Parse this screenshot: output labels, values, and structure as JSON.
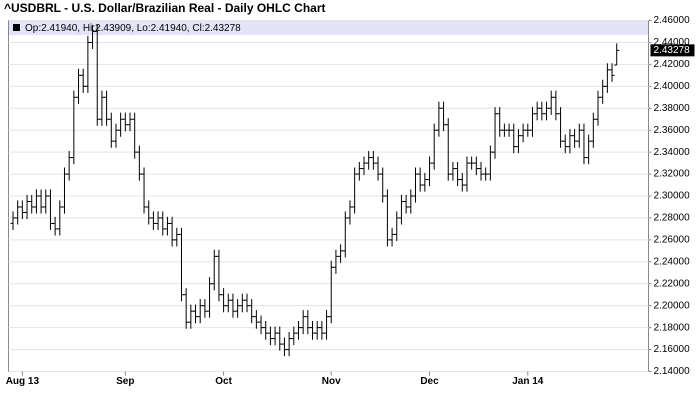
{
  "chart_data": {
    "type": "ohlc",
    "title": "^USDBRL - U.S. Dollar/Brazilian Real - Daily OHLC Chart",
    "info_label": "Op:2.41940, Hi:2.43909, Lo:2.41940, Cl:2.43278",
    "color": "#000000",
    "grid": true,
    "categories": [
      null,
      null,
      "Aug 13",
      null,
      null,
      null,
      null,
      null,
      null,
      null,
      null,
      null,
      null,
      null,
      null,
      null,
      null,
      null,
      null,
      null,
      null,
      null,
      null,
      null,
      "Sep",
      null,
      null,
      null,
      null,
      null,
      null,
      null,
      null,
      null,
      null,
      null,
      null,
      null,
      null,
      null,
      null,
      null,
      null,
      null,
      null,
      "Oct",
      null,
      null,
      null,
      null,
      null,
      null,
      null,
      null,
      null,
      null,
      null,
      null,
      null,
      null,
      null,
      null,
      null,
      null,
      null,
      null,
      null,
      null,
      "Nov",
      null,
      null,
      null,
      null,
      null,
      null,
      null,
      null,
      null,
      null,
      null,
      null,
      null,
      null,
      null,
      null,
      null,
      null,
      null,
      null,
      "Dec",
      null,
      null,
      null,
      null,
      null,
      null,
      null,
      null,
      null,
      null,
      null,
      null,
      null,
      null,
      null,
      null,
      null,
      null,
      null,
      null,
      "Jan 14",
      null,
      null,
      null,
      null,
      null,
      null,
      null,
      null,
      null,
      null,
      null,
      null,
      null,
      null,
      null,
      null,
      null,
      null,
      null
    ],
    "open": [
      2.275,
      2.28,
      2.29,
      2.285,
      2.295,
      2.29,
      2.3,
      2.29,
      2.3,
      2.275,
      2.27,
      2.29,
      2.32,
      2.335,
      2.39,
      2.41,
      2.4,
      2.44,
      2.45,
      2.37,
      2.39,
      2.37,
      2.35,
      2.36,
      2.37,
      2.365,
      2.37,
      2.34,
      2.32,
      2.29,
      2.28,
      2.275,
      2.28,
      2.27,
      2.275,
      2.26,
      2.265,
      2.21,
      2.185,
      2.195,
      2.19,
      2.2,
      2.195,
      2.22,
      2.245,
      2.21,
      2.2,
      2.205,
      2.195,
      2.2,
      2.205,
      2.2,
      2.19,
      2.185,
      2.18,
      2.175,
      2.17,
      2.175,
      2.165,
      2.16,
      2.17,
      2.175,
      2.18,
      2.19,
      2.18,
      2.175,
      2.18,
      2.175,
      2.19,
      2.235,
      2.245,
      2.25,
      2.28,
      2.29,
      2.32,
      2.325,
      2.33,
      2.335,
      2.33,
      2.32,
      2.3,
      2.26,
      2.265,
      2.28,
      2.295,
      2.29,
      2.3,
      2.32,
      2.31,
      2.315,
      2.33,
      2.36,
      2.38,
      2.365,
      2.32,
      2.325,
      2.315,
      2.31,
      2.33,
      2.33,
      2.325,
      2.32,
      2.32,
      2.34,
      2.375,
      2.36,
      2.36,
      2.36,
      2.345,
      2.355,
      2.36,
      2.36,
      2.375,
      2.38,
      2.375,
      2.38,
      2.39,
      2.375,
      2.35,
      2.345,
      2.355,
      2.35,
      2.36,
      2.335,
      2.35,
      2.37,
      2.39,
      2.4,
      2.415,
      2.4194
    ],
    "high": [
      2.286,
      2.296,
      2.296,
      2.301,
      2.301,
      2.306,
      2.306,
      2.306,
      2.306,
      2.281,
      2.296,
      2.326,
      2.341,
      2.396,
      2.416,
      2.416,
      2.446,
      2.456,
      2.456,
      2.396,
      2.396,
      2.376,
      2.366,
      2.376,
      2.376,
      2.376,
      2.376,
      2.346,
      2.326,
      2.296,
      2.286,
      2.286,
      2.286,
      2.281,
      2.281,
      2.271,
      2.271,
      2.216,
      2.201,
      2.201,
      2.206,
      2.206,
      2.226,
      2.251,
      2.251,
      2.216,
      2.211,
      2.211,
      2.206,
      2.211,
      2.211,
      2.206,
      2.196,
      2.191,
      2.186,
      2.181,
      2.181,
      2.181,
      2.171,
      2.176,
      2.181,
      2.186,
      2.196,
      2.196,
      2.186,
      2.186,
      2.186,
      2.196,
      2.241,
      2.251,
      2.256,
      2.286,
      2.296,
      2.326,
      2.331,
      2.336,
      2.341,
      2.341,
      2.336,
      2.326,
      2.306,
      2.271,
      2.286,
      2.301,
      2.301,
      2.306,
      2.326,
      2.326,
      2.321,
      2.336,
      2.366,
      2.386,
      2.386,
      2.371,
      2.331,
      2.331,
      2.321,
      2.336,
      2.336,
      2.336,
      2.331,
      2.326,
      2.346,
      2.381,
      2.381,
      2.366,
      2.366,
      2.366,
      2.361,
      2.366,
      2.366,
      2.381,
      2.386,
      2.386,
      2.386,
      2.396,
      2.396,
      2.381,
      2.356,
      2.361,
      2.361,
      2.366,
      2.366,
      2.356,
      2.376,
      2.396,
      2.406,
      2.421,
      2.421,
      2.43909
    ],
    "low": [
      2.269,
      2.274,
      2.279,
      2.279,
      2.284,
      2.284,
      2.284,
      2.284,
      2.269,
      2.264,
      2.264,
      2.284,
      2.314,
      2.329,
      2.384,
      2.394,
      2.394,
      2.434,
      2.364,
      2.364,
      2.364,
      2.344,
      2.344,
      2.354,
      2.359,
      2.359,
      2.334,
      2.314,
      2.284,
      2.274,
      2.269,
      2.269,
      2.264,
      2.264,
      2.254,
      2.254,
      2.204,
      2.179,
      2.179,
      2.184,
      2.184,
      2.189,
      2.189,
      2.214,
      2.204,
      2.194,
      2.194,
      2.189,
      2.189,
      2.194,
      2.194,
      2.184,
      2.179,
      2.174,
      2.169,
      2.164,
      2.164,
      2.159,
      2.154,
      2.154,
      2.164,
      2.169,
      2.174,
      2.174,
      2.169,
      2.169,
      2.169,
      2.169,
      2.184,
      2.229,
      2.239,
      2.244,
      2.274,
      2.284,
      2.314,
      2.319,
      2.324,
      2.324,
      2.314,
      2.294,
      2.254,
      2.254,
      2.259,
      2.274,
      2.284,
      2.284,
      2.294,
      2.304,
      2.304,
      2.309,
      2.324,
      2.354,
      2.359,
      2.314,
      2.314,
      2.309,
      2.304,
      2.304,
      2.324,
      2.319,
      2.314,
      2.314,
      2.314,
      2.334,
      2.354,
      2.354,
      2.354,
      2.339,
      2.339,
      2.349,
      2.354,
      2.354,
      2.369,
      2.369,
      2.369,
      2.374,
      2.369,
      2.344,
      2.339,
      2.339,
      2.344,
      2.344,
      2.329,
      2.329,
      2.344,
      2.364,
      2.384,
      2.394,
      2.404,
      2.4194
    ],
    "close": [
      2.28,
      2.29,
      2.285,
      2.295,
      2.29,
      2.3,
      2.29,
      2.3,
      2.275,
      2.27,
      2.29,
      2.32,
      2.335,
      2.39,
      2.41,
      2.4,
      2.44,
      2.45,
      2.37,
      2.39,
      2.37,
      2.35,
      2.36,
      2.37,
      2.365,
      2.37,
      2.34,
      2.32,
      2.29,
      2.28,
      2.275,
      2.28,
      2.27,
      2.275,
      2.26,
      2.265,
      2.21,
      2.185,
      2.195,
      2.19,
      2.2,
      2.195,
      2.22,
      2.245,
      2.21,
      2.2,
      2.205,
      2.195,
      2.2,
      2.205,
      2.2,
      2.19,
      2.185,
      2.18,
      2.175,
      2.17,
      2.175,
      2.165,
      2.16,
      2.17,
      2.175,
      2.18,
      2.19,
      2.18,
      2.175,
      2.18,
      2.175,
      2.19,
      2.235,
      2.245,
      2.25,
      2.28,
      2.29,
      2.32,
      2.325,
      2.33,
      2.335,
      2.33,
      2.32,
      2.3,
      2.26,
      2.265,
      2.28,
      2.295,
      2.29,
      2.3,
      2.32,
      2.31,
      2.315,
      2.33,
      2.36,
      2.38,
      2.365,
      2.32,
      2.325,
      2.315,
      2.31,
      2.33,
      2.33,
      2.325,
      2.32,
      2.32,
      2.34,
      2.375,
      2.36,
      2.36,
      2.36,
      2.345,
      2.355,
      2.36,
      2.36,
      2.375,
      2.38,
      2.375,
      2.38,
      2.39,
      2.375,
      2.35,
      2.345,
      2.355,
      2.35,
      2.36,
      2.335,
      2.35,
      2.37,
      2.39,
      2.4,
      2.415,
      2.41,
      2.43278
    ],
    "ylim": [
      2.14,
      2.46
    ],
    "yticks": [
      {
        "value": 2.14,
        "label": "2.14000"
      },
      {
        "value": 2.16,
        "label": "2.16000"
      },
      {
        "value": 2.18,
        "label": "2.18000"
      },
      {
        "value": 2.2,
        "label": "2.20000"
      },
      {
        "value": 2.22,
        "label": "2.22000"
      },
      {
        "value": 2.24,
        "label": "2.24000"
      },
      {
        "value": 2.26,
        "label": "2.26000"
      },
      {
        "value": 2.28,
        "label": "2.28000"
      },
      {
        "value": 2.3,
        "label": "2.30000"
      },
      {
        "value": 2.32,
        "label": "2.32000"
      },
      {
        "value": 2.34,
        "label": "2.34000"
      },
      {
        "value": 2.36,
        "label": "2.36000"
      },
      {
        "value": 2.38,
        "label": "2.38000"
      },
      {
        "value": 2.4,
        "label": "2.40000"
      },
      {
        "value": 2.42,
        "label": "2.42000"
      },
      {
        "value": 2.44,
        "label": "2.44000"
      },
      {
        "value": 2.46,
        "label": "2.46000"
      }
    ]
  }
}
